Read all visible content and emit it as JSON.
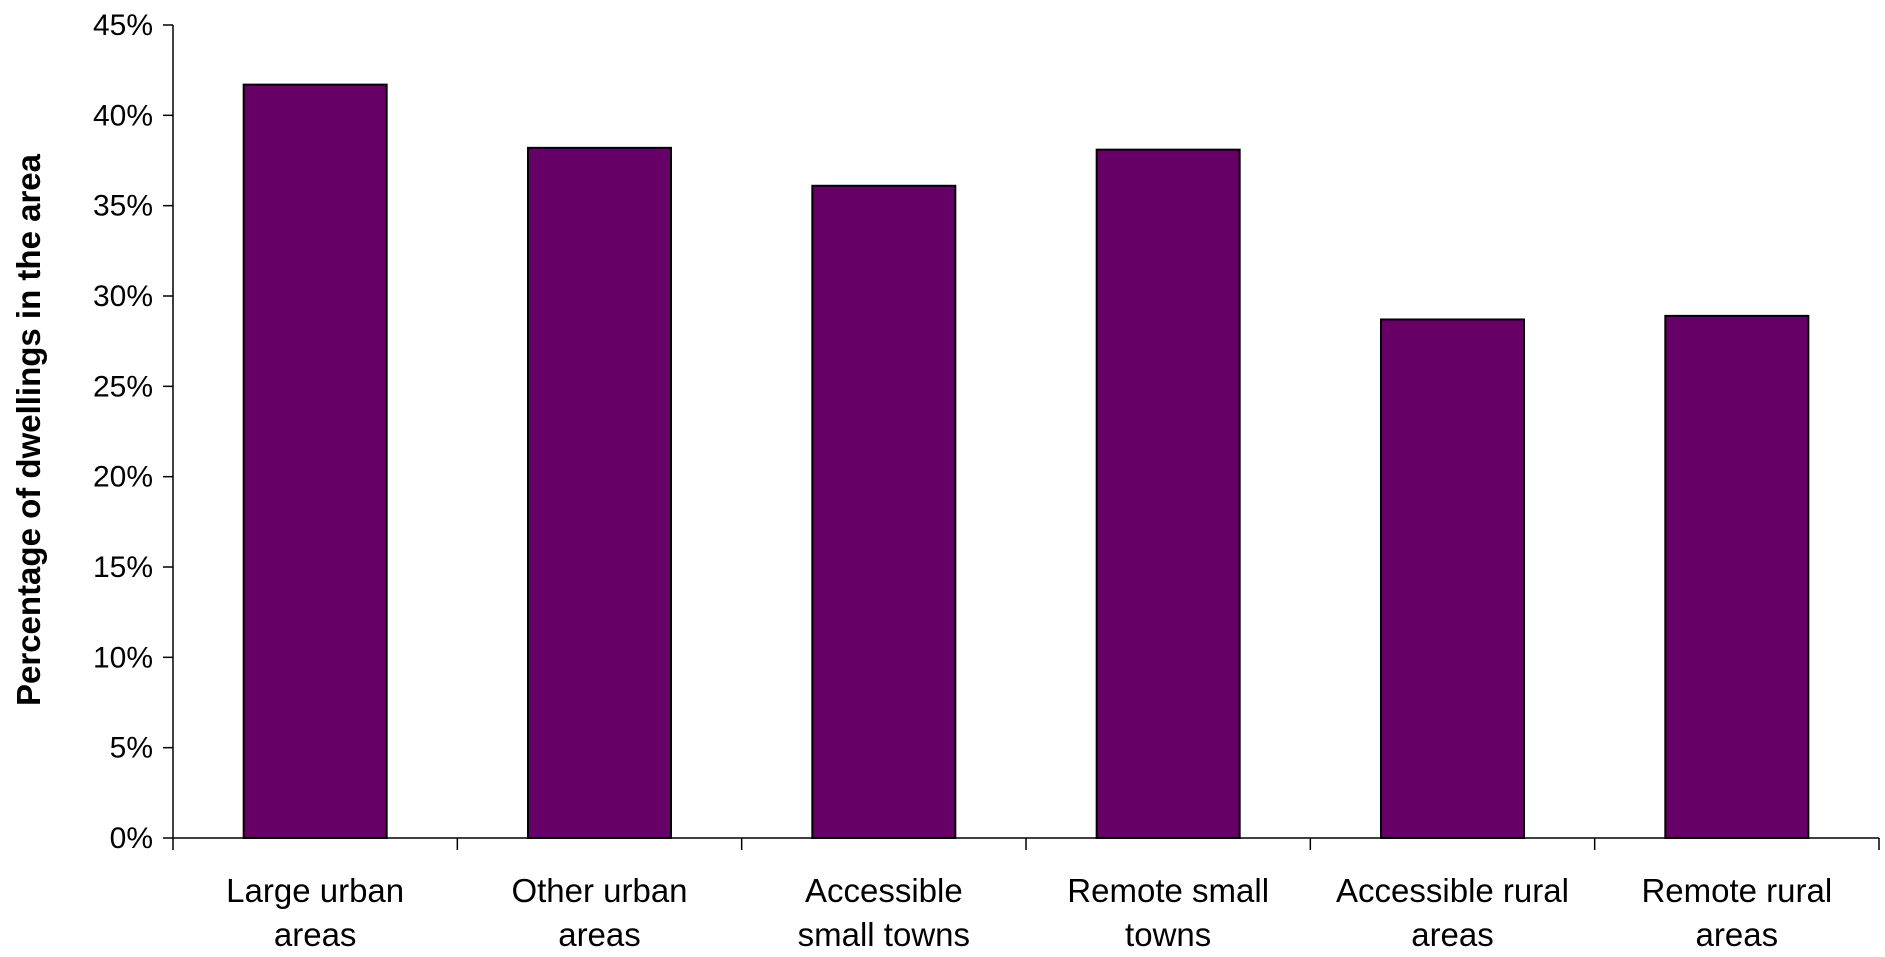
{
  "chart_data": {
    "type": "bar",
    "title": "",
    "xlabel": "",
    "ylabel": "Percentage of dwellings in  the area",
    "categories": [
      [
        "Large urban",
        "areas"
      ],
      [
        "Other urban",
        "areas"
      ],
      [
        "Accessible",
        "small towns"
      ],
      [
        "Remote small",
        "towns"
      ],
      [
        "Accessible rural",
        "areas"
      ],
      [
        "Remote rural",
        "areas"
      ]
    ],
    "values": [
      41.7,
      38.2,
      36.1,
      38.1,
      28.7,
      28.9
    ],
    "ylim": [
      0,
      45
    ],
    "yticks": [
      0,
      5,
      10,
      15,
      20,
      25,
      30,
      35,
      40,
      45
    ],
    "ytick_labels": [
      "0%",
      "5%",
      "10%",
      "15%",
      "20%",
      "25%",
      "30%",
      "35%",
      "40%",
      "45%"
    ],
    "grid": false,
    "legend": "none",
    "bar_color": "#660066",
    "bar_edge_color": "#000000"
  }
}
